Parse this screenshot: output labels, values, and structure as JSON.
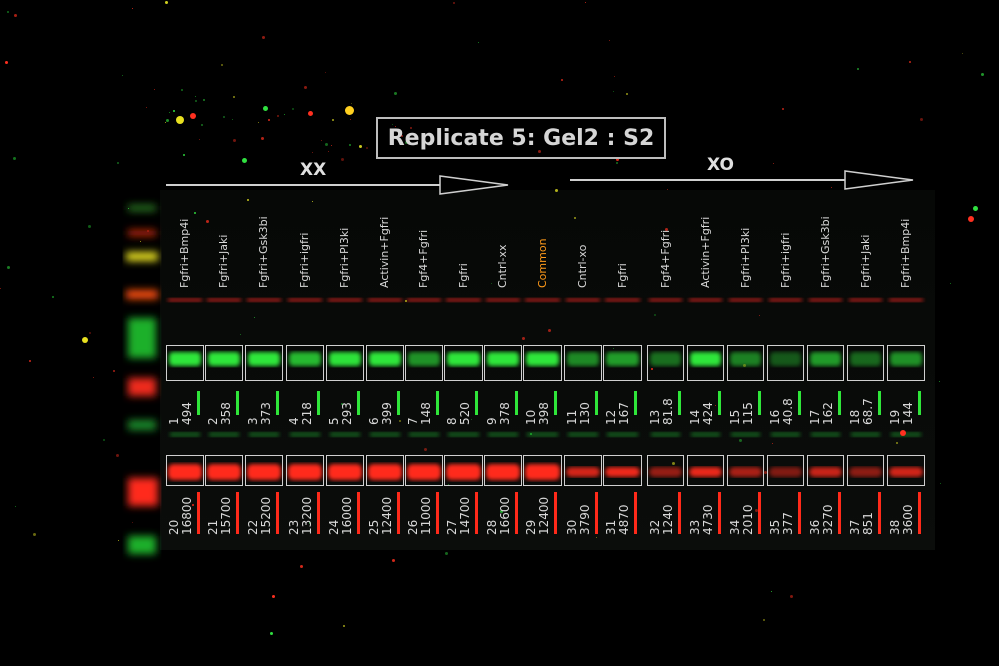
{
  "title": "Replicate 5: Gel2 : S2",
  "groups": {
    "left": "XX",
    "right": "XO"
  },
  "colors": {
    "green_band": "#2fe63a",
    "red_band": "#ff2a1a",
    "accent_label": "#ff9a1a",
    "box_outline": "#d0d0d0"
  },
  "lanes": [
    {
      "label": "Fgfri+Bmp4i",
      "green_num": "1",
      "green_val": "494",
      "red_num": "20",
      "red_val": "16800"
    },
    {
      "label": "Fgfri+Jaki",
      "green_num": "2",
      "green_val": "358",
      "red_num": "21",
      "red_val": "15700"
    },
    {
      "label": "Fgfri+Gsk3bi",
      "green_num": "3",
      "green_val": "373",
      "red_num": "22",
      "red_val": "15200"
    },
    {
      "label": "Fgfri+igfri",
      "green_num": "4",
      "green_val": "218",
      "red_num": "23",
      "red_val": "13200"
    },
    {
      "label": "Fgfri+PI3ki",
      "green_num": "5",
      "green_val": "293",
      "red_num": "24",
      "red_val": "16000"
    },
    {
      "label": "Activin+Fgfri",
      "green_num": "6",
      "green_val": "399",
      "red_num": "25",
      "red_val": "12400"
    },
    {
      "label": "Fgf4+Fgfri",
      "green_num": "7",
      "green_val": "148",
      "red_num": "26",
      "red_val": "11000"
    },
    {
      "label": "Fgfri",
      "green_num": "8",
      "green_val": "520",
      "red_num": "27",
      "red_val": "14700"
    },
    {
      "label": "Cntrl-xx",
      "green_num": "9",
      "green_val": "378",
      "red_num": "28",
      "red_val": "16600"
    },
    {
      "label": "Common",
      "green_num": "10",
      "green_val": "398",
      "red_num": "29",
      "red_val": "12400",
      "highlight": true
    },
    {
      "label": "Cntrl-xo",
      "green_num": "11",
      "green_val": "130",
      "red_num": "30",
      "red_val": "3790"
    },
    {
      "label": "Fgfri",
      "green_num": "12",
      "green_val": "167",
      "red_num": "31",
      "red_val": "4870"
    },
    {
      "label": "Fgf4+Fgfri",
      "green_num": "13",
      "green_val": "81.8",
      "red_num": "32",
      "red_val": "1240"
    },
    {
      "label": "Activin+Fgfri",
      "green_num": "14",
      "green_val": "424",
      "red_num": "33",
      "red_val": "4730"
    },
    {
      "label": "Fgfri+PI3ki",
      "green_num": "15",
      "green_val": "115",
      "red_num": "34",
      "red_val": "2010"
    },
    {
      "label": "Fgfri+igfri",
      "green_num": "16",
      "green_val": "40.8",
      "red_num": "35",
      "red_val": "377"
    },
    {
      "label": "Fgfri+Gsk3bi",
      "green_num": "17",
      "green_val": "162",
      "red_num": "36",
      "red_val": "3270"
    },
    {
      "label": "Fgfri+Jaki",
      "green_num": "18",
      "green_val": "68.7",
      "red_num": "37",
      "red_val": "851"
    },
    {
      "label": "Fgfri+Bmp4i",
      "green_num": "19",
      "green_val": "144",
      "red_num": "38",
      "red_val": "3600"
    }
  ]
}
